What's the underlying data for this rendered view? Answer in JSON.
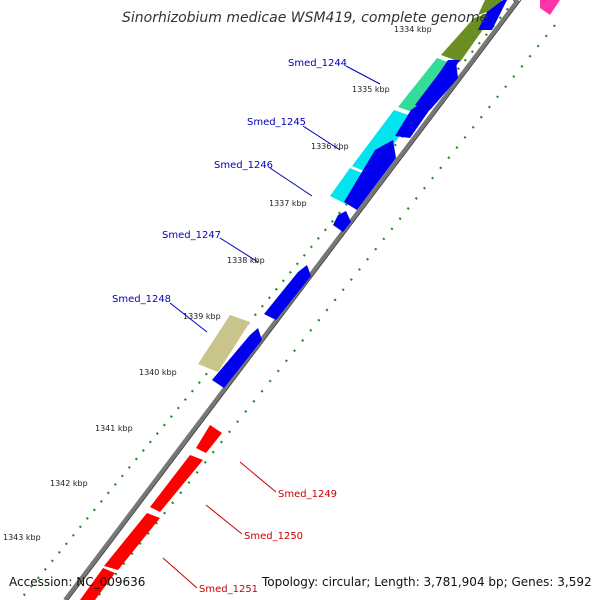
{
  "title": "Sinorhizobium medicae WSM419, complete genome",
  "footer": {
    "accession": "Accession: NC_009636",
    "summary": "Topology: circular; Length: 3,781,904 bp; Genes: 3,592"
  },
  "ticks": [
    "1334 kbp",
    "1335 kbp",
    "1336 kbp",
    "1337 kbp",
    "1338 kbp",
    "1339 kbp",
    "1340 kbp",
    "1341 kbp",
    "1342 kbp",
    "1343 kbp"
  ],
  "gene_labels": {
    "smed_1244": "Smed_1244",
    "smed_1245": "Smed_1245",
    "smed_1246": "Smed_1246",
    "smed_1247": "Smed_1247",
    "smed_1248": "Smed_1248",
    "smed_1249": "Smed_1249",
    "smed_1250": "Smed_1250",
    "smed_1251": "Smed_1251"
  },
  "colors": {
    "forward_cds": "#0000ee",
    "reverse_cds": "#ff0000",
    "olive": "#6b8e23",
    "green_light": "#33dd99",
    "cyan": "#00e5ee",
    "khaki": "#c8c48a",
    "magenta": "#ff33aa",
    "backbone": "#777777",
    "ticks": "#228b22"
  }
}
